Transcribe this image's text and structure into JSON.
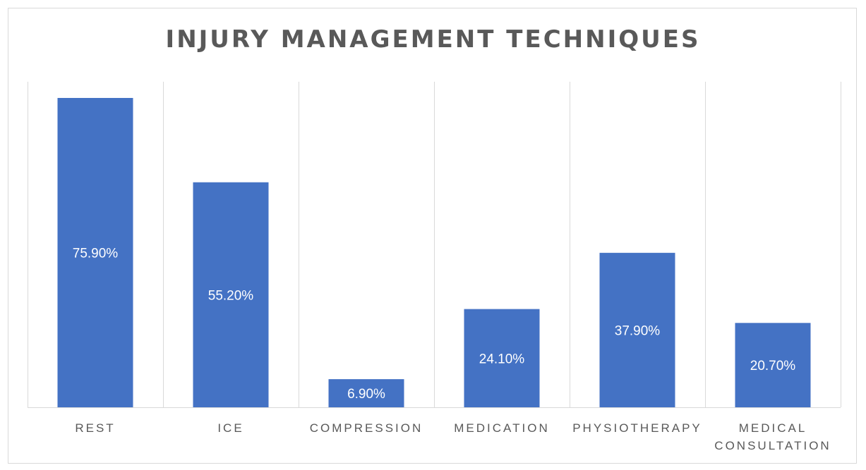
{
  "colors": {
    "bar": "#4472c4",
    "label_inside": "#ffffff",
    "axis_text": "#595959",
    "gridline": "#d9d9d9",
    "title": "#595959"
  },
  "chart_data": {
    "type": "bar",
    "title": "INJURY MANAGEMENT TECHNIQUES",
    "categories": [
      "REST",
      "ICE",
      "COMPRESSION",
      "MEDICATION",
      "PHYSIOTHERAPY",
      "MEDICAL CONSULTATION"
    ],
    "category_label_lines": [
      [
        "REST"
      ],
      [
        "ICE"
      ],
      [
        "COMPRESSION"
      ],
      [
        "MEDICATION"
      ],
      [
        "PHYSIOTHERAPY"
      ],
      [
        "MEDICAL",
        "CONSULTATION"
      ]
    ],
    "values": [
      75.9,
      55.2,
      6.9,
      24.1,
      37.9,
      20.7
    ],
    "data_labels": [
      "75.90%",
      "55.20%",
      "6.90%",
      "24.10%",
      "37.90%",
      "20.70%"
    ],
    "unit": "%",
    "ylim": [
      0,
      80
    ],
    "xlabel": "",
    "ylabel": "",
    "legend": false,
    "grid": "vertical category separators",
    "data_label_position": "inside-center"
  }
}
